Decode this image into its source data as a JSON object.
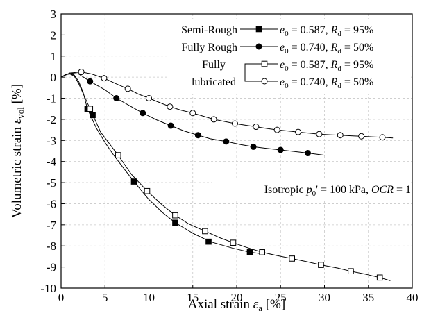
{
  "chart_data": {
    "type": "scatter",
    "xlabel": "Axial strain ε_a [%]",
    "ylabel": "Volumetric strain ε_vol [%]",
    "xlim": [
      0,
      40
    ],
    "ylim": [
      -10,
      3
    ],
    "x_ticks": [
      0,
      5,
      10,
      15,
      20,
      25,
      30,
      35,
      40
    ],
    "y_ticks": [
      3,
      2,
      1,
      0,
      -1,
      -2,
      -3,
      -4,
      -5,
      -6,
      -7,
      -8,
      -9,
      -10
    ],
    "grid": true,
    "legend_position": "top-right",
    "legend": {
      "rows": [
        {
          "group": "Semi-Rough",
          "e0": "0.587",
          "Rd": "95%"
        },
        {
          "group": "Fully Rough",
          "e0": "0.740",
          "Rd": "50%"
        },
        {
          "group": "Fully",
          "e0": "0.587",
          "Rd": "95%"
        },
        {
          "group": "lubricated",
          "e0": "0.740",
          "Rd": "50%"
        }
      ],
      "e0_prefix": "e",
      "e0_sub": "0",
      "Rd_prefix": "R",
      "Rd_sub": "d"
    },
    "annotation": {
      "part1": "Isotropic ",
      "p": "p",
      "psub": "0",
      "part2": "' = 100 kPa, ",
      "ocr": "OCR",
      "part3": " = 1"
    },
    "series": [
      {
        "marker": "filled-square",
        "markers": [
          [
            3.0,
            -1.5
          ],
          [
            3.6,
            -1.8
          ],
          [
            8.3,
            -4.95
          ],
          [
            13.0,
            -6.9
          ],
          [
            16.8,
            -7.8
          ],
          [
            21.5,
            -8.3
          ]
        ],
        "curve": [
          [
            0,
            0
          ],
          [
            0.5,
            0.12
          ],
          [
            1,
            0.17
          ],
          [
            1.5,
            0.1
          ],
          [
            2,
            -0.2
          ],
          [
            2.5,
            -0.7
          ],
          [
            3,
            -1.5
          ],
          [
            4,
            -2.4
          ],
          [
            5,
            -3.1
          ],
          [
            6,
            -3.7
          ],
          [
            7,
            -4.25
          ],
          [
            8.3,
            -4.95
          ],
          [
            10,
            -5.8
          ],
          [
            11.5,
            -6.4
          ],
          [
            13,
            -6.9
          ],
          [
            15,
            -7.4
          ],
          [
            17,
            -7.8
          ],
          [
            19.5,
            -8.1
          ],
          [
            21.5,
            -8.3
          ],
          [
            23,
            -8.38
          ]
        ]
      },
      {
        "marker": "filled-circle",
        "markers": [
          [
            3.3,
            -0.2
          ],
          [
            6.3,
            -1.0
          ],
          [
            9.3,
            -1.7
          ],
          [
            12.5,
            -2.3
          ],
          [
            15.6,
            -2.75
          ],
          [
            18.8,
            -3.05
          ],
          [
            21.9,
            -3.3
          ],
          [
            25.0,
            -3.45
          ],
          [
            28.1,
            -3.6
          ]
        ],
        "curve": [
          [
            0,
            0
          ],
          [
            1,
            0.2
          ],
          [
            2,
            0.15
          ],
          [
            3.3,
            -0.2
          ],
          [
            5,
            -0.6
          ],
          [
            6.3,
            -1.0
          ],
          [
            8,
            -1.4
          ],
          [
            9.3,
            -1.7
          ],
          [
            11,
            -2.05
          ],
          [
            12.5,
            -2.3
          ],
          [
            14,
            -2.55
          ],
          [
            15.6,
            -2.75
          ],
          [
            17,
            -2.92
          ],
          [
            18.8,
            -3.05
          ],
          [
            20.5,
            -3.2
          ],
          [
            21.9,
            -3.3
          ],
          [
            23.5,
            -3.38
          ],
          [
            25,
            -3.45
          ],
          [
            26.5,
            -3.52
          ],
          [
            28.1,
            -3.6
          ],
          [
            30,
            -3.7
          ]
        ]
      },
      {
        "marker": "open-square",
        "markers": [
          [
            3.3,
            -1.5
          ],
          [
            6.5,
            -3.7
          ],
          [
            9.8,
            -5.4
          ],
          [
            13.0,
            -6.55
          ],
          [
            16.4,
            -7.3
          ],
          [
            19.6,
            -7.85
          ],
          [
            22.9,
            -8.3
          ],
          [
            26.3,
            -8.6
          ],
          [
            29.6,
            -8.9
          ],
          [
            33.0,
            -9.2
          ],
          [
            36.3,
            -9.5
          ]
        ],
        "curve": [
          [
            0,
            0
          ],
          [
            0.5,
            0.12
          ],
          [
            1,
            0.15
          ],
          [
            1.5,
            0.05
          ],
          [
            2,
            -0.3
          ],
          [
            3.3,
            -1.5
          ],
          [
            4.5,
            -2.6
          ],
          [
            6.5,
            -3.7
          ],
          [
            8,
            -4.6
          ],
          [
            9.8,
            -5.4
          ],
          [
            11.5,
            -6.05
          ],
          [
            13,
            -6.55
          ],
          [
            14.5,
            -6.95
          ],
          [
            16.4,
            -7.3
          ],
          [
            18,
            -7.6
          ],
          [
            19.6,
            -7.85
          ],
          [
            21,
            -8.05
          ],
          [
            22.9,
            -8.3
          ],
          [
            24.5,
            -8.45
          ],
          [
            26.3,
            -8.6
          ],
          [
            28,
            -8.75
          ],
          [
            29.6,
            -8.9
          ],
          [
            31.5,
            -9.05
          ],
          [
            33,
            -9.2
          ],
          [
            34.8,
            -9.35
          ],
          [
            36.3,
            -9.5
          ],
          [
            37.5,
            -9.65
          ]
        ]
      },
      {
        "marker": "open-circle",
        "markers": [
          [
            2.3,
            0.25
          ],
          [
            4.9,
            -0.05
          ],
          [
            7.6,
            -0.55
          ],
          [
            10.0,
            -1.0
          ],
          [
            12.4,
            -1.4
          ],
          [
            15.0,
            -1.7
          ],
          [
            17.4,
            -2.0
          ],
          [
            19.8,
            -2.2
          ],
          [
            22.2,
            -2.35
          ],
          [
            24.6,
            -2.5
          ],
          [
            27.0,
            -2.6
          ],
          [
            29.4,
            -2.7
          ],
          [
            31.8,
            -2.75
          ],
          [
            34.2,
            -2.8
          ],
          [
            36.6,
            -2.85
          ]
        ],
        "curve": [
          [
            0,
            0
          ],
          [
            1,
            0.2
          ],
          [
            2.3,
            0.25
          ],
          [
            3.5,
            0.15
          ],
          [
            4.9,
            -0.05
          ],
          [
            6.2,
            -0.3
          ],
          [
            7.6,
            -0.55
          ],
          [
            8.8,
            -0.8
          ],
          [
            10,
            -1.0
          ],
          [
            11.2,
            -1.2
          ],
          [
            12.4,
            -1.4
          ],
          [
            13.7,
            -1.57
          ],
          [
            15,
            -1.7
          ],
          [
            16.2,
            -1.85
          ],
          [
            17.4,
            -2.0
          ],
          [
            18.6,
            -2.1
          ],
          [
            19.8,
            -2.2
          ],
          [
            21,
            -2.28
          ],
          [
            22.2,
            -2.35
          ],
          [
            23.4,
            -2.43
          ],
          [
            24.6,
            -2.5
          ],
          [
            25.8,
            -2.55
          ],
          [
            27,
            -2.6
          ],
          [
            28.2,
            -2.65
          ],
          [
            29.4,
            -2.7
          ],
          [
            30.6,
            -2.73
          ],
          [
            31.8,
            -2.75
          ],
          [
            33,
            -2.78
          ],
          [
            34.2,
            -2.8
          ],
          [
            35.4,
            -2.83
          ],
          [
            36.6,
            -2.85
          ],
          [
            37.8,
            -2.88
          ]
        ]
      }
    ]
  }
}
